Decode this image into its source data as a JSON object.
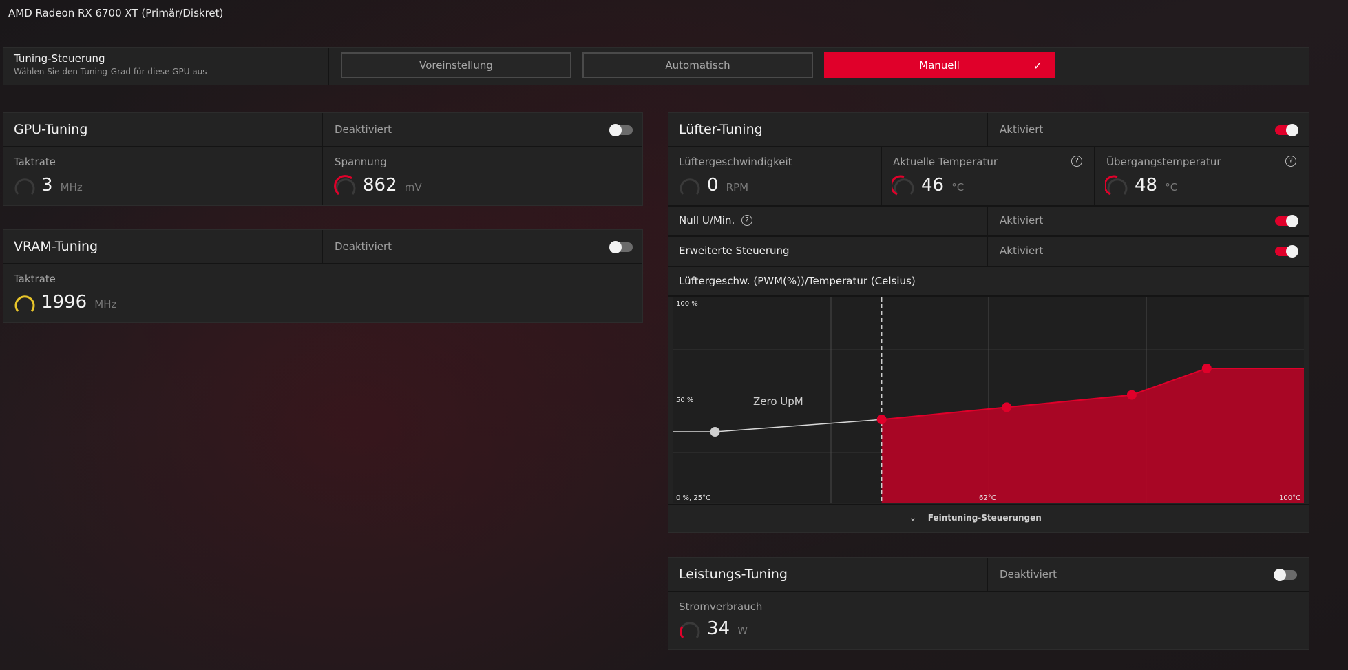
{
  "gpu_name": "AMD Radeon RX 6700 XT (Primär/Diskret)",
  "tuning_control": {
    "title": "Tuning-Steuerung",
    "subtitle": "Wählen Sie den Tuning-Grad für diese GPU aus",
    "modes": [
      "Voreinstellung",
      "Automatisch",
      "Manuell"
    ],
    "selected": "Manuell"
  },
  "gpu_tuning": {
    "title": "GPU-Tuning",
    "state": "Deaktiviert",
    "clock": {
      "label": "Taktrate",
      "value": "3",
      "unit": "MHz"
    },
    "voltage": {
      "label": "Spannung",
      "value": "862",
      "unit": "mV"
    }
  },
  "vram_tuning": {
    "title": "VRAM-Tuning",
    "state": "Deaktiviert",
    "clock": {
      "label": "Taktrate",
      "value": "1996",
      "unit": "MHz"
    }
  },
  "fan_tuning": {
    "title": "Lüfter-Tuning",
    "state": "Aktiviert",
    "fan_speed": {
      "label": "Lüftergeschwindigkeit",
      "value": "0",
      "unit": "RPM"
    },
    "current_temp": {
      "label": "Aktuelle Temperatur",
      "value": "46",
      "unit": "°C"
    },
    "junction_temp": {
      "label": "Übergangstemperatur",
      "value": "48",
      "unit": "°C"
    },
    "zero_rpm": {
      "label": "Null U/Min.",
      "state": "Aktiviert"
    },
    "advanced": {
      "label": "Erweiterte Steuerung",
      "state": "Aktiviert"
    },
    "curve_title": "Lüftergeschw. (PWM(%))/Temperatur (Celsius)",
    "fine_tuning": "Feintuning-Steuerungen"
  },
  "power_tuning": {
    "title": "Leistungs-Tuning",
    "state": "Deaktiviert",
    "power": {
      "label": "Stromverbrauch",
      "value": "34",
      "unit": "W"
    }
  },
  "chart_data": {
    "type": "line",
    "labels": {
      "y_top": "100 %",
      "y_mid": "50 %",
      "origin": "0 %, 25°C",
      "x_mid": "62°C",
      "x_end": "100°C",
      "zero_rpm": "Zero UpM"
    },
    "xlim": [
      25,
      100
    ],
    "ylim": [
      0,
      100
    ],
    "zero_rpm_points": [
      {
        "x": 30,
        "y": 35
      }
    ],
    "points": [
      {
        "x": 50,
        "y": 41
      },
      {
        "x": 65,
        "y": 47
      },
      {
        "x": 80,
        "y": 53
      },
      {
        "x": 89,
        "y": 66
      }
    ],
    "zero_rpm_limit": 50,
    "colors": {
      "accent": "#e0002a",
      "fill": "#b00526",
      "zero_line": "#d9d9d9"
    }
  }
}
